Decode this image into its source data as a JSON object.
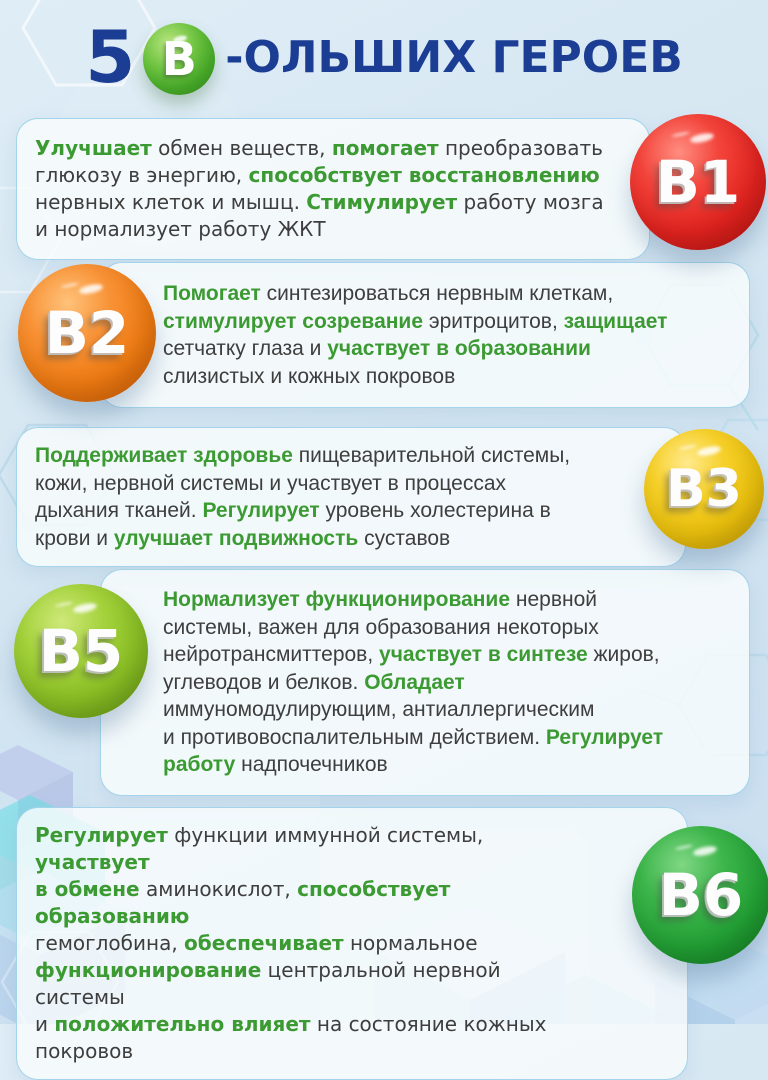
{
  "page_title": {
    "number": "5",
    "sphere_letter": "В",
    "text_after": "-ОЛЬШИХ ГЕРОЕВ"
  },
  "colors": {
    "title_navy": "#1b3e94",
    "highlight_green": "#3c9a33",
    "body_text": "#3e3e3e",
    "background_blue": "#d5e6f2",
    "title_sphere_green": "#46a528",
    "b1_red": "#e2231f",
    "b2_orange": "#ef7b12",
    "b3_yellow": "#ecc20d",
    "b5_lime": "#8abf24",
    "b6_green": "#23a135"
  },
  "cards": [
    {
      "vitamin": "B1",
      "badge_side": "right",
      "badge_color": "#e2231f",
      "segments": [
        {
          "text": "Улучшает",
          "highlight": true
        },
        {
          "text": " обмен веществ, ",
          "highlight": false
        },
        {
          "text": "помогает",
          "highlight": true
        },
        {
          "text": " преобразовать\nглюкозу в энергию, ",
          "highlight": false
        },
        {
          "text": "способствует восстановлению",
          "highlight": true
        },
        {
          "text": "\nнервных клеток и мышц. ",
          "highlight": false
        },
        {
          "text": "Стимулирует",
          "highlight": true
        },
        {
          "text": " работу мозга\nи нормализует работу ЖКТ",
          "highlight": false
        }
      ]
    },
    {
      "vitamin": "B2",
      "badge_side": "left",
      "badge_color": "#ef7b12",
      "segments": [
        {
          "text": "Помогает",
          "highlight": true
        },
        {
          "text": " синтезироваться нервным клеткам,\n",
          "highlight": false
        },
        {
          "text": "стимулирует созревание",
          "highlight": true
        },
        {
          "text": " эритроцитов, ",
          "highlight": false
        },
        {
          "text": "защищает",
          "highlight": true
        },
        {
          "text": "\nсетчатку глаза и ",
          "highlight": false
        },
        {
          "text": "участвует в образовании",
          "highlight": true
        },
        {
          "text": "\nслизистых и кожных покровов",
          "highlight": false
        }
      ]
    },
    {
      "vitamin": "B3",
      "badge_side": "right",
      "badge_color": "#ecc20d",
      "segments": [
        {
          "text": "Поддерживает здоровье",
          "highlight": true
        },
        {
          "text": " пищеварительной системы,\nкожи, нервной системы и участвует в процессах\nдыхания тканей. ",
          "highlight": false
        },
        {
          "text": "Регулирует",
          "highlight": true
        },
        {
          "text": " уровень холестерина в\nкрови и ",
          "highlight": false
        },
        {
          "text": "улучшает подвижность",
          "highlight": true
        },
        {
          "text": " суставов",
          "highlight": false
        }
      ]
    },
    {
      "vitamin": "B5",
      "badge_side": "left",
      "badge_color": "#8abf24",
      "segments": [
        {
          "text": "Нормализует функционирование",
          "highlight": true
        },
        {
          "text": " нервной\nсистемы, важен для образования некоторых\nнейротрансмиттеров, ",
          "highlight": false
        },
        {
          "text": "участвует в синтезе",
          "highlight": true
        },
        {
          "text": " жиров,\nуглеводов и белков. ",
          "highlight": false
        },
        {
          "text": "Обладает",
          "highlight": true
        },
        {
          "text": "\nиммуномодулирующим, антиаллергическим\nи противовоспалительным действием. ",
          "highlight": false
        },
        {
          "text": "Регулирует\nработу",
          "highlight": true
        },
        {
          "text": " надпочечников",
          "highlight": false
        }
      ]
    },
    {
      "vitamin": "B6",
      "badge_side": "right",
      "badge_color": "#23a135",
      "segments": [
        {
          "text": "Регулирует",
          "highlight": true
        },
        {
          "text": " функции иммунной системы, ",
          "highlight": false
        },
        {
          "text": "участвует\nв обмене",
          "highlight": true
        },
        {
          "text": " аминокислот, ",
          "highlight": false
        },
        {
          "text": "способствует образованию",
          "highlight": true
        },
        {
          "text": "\nгемоглобина, ",
          "highlight": false
        },
        {
          "text": "обеспечивает",
          "highlight": true
        },
        {
          "text": " нормальное\n",
          "highlight": false
        },
        {
          "text": "функционирование",
          "highlight": true
        },
        {
          "text": " центральной нервной системы\nи ",
          "highlight": false
        },
        {
          "text": "положительно влияет",
          "highlight": true
        },
        {
          "text": " на состояние кожных\nпокровов",
          "highlight": false
        }
      ]
    }
  ]
}
